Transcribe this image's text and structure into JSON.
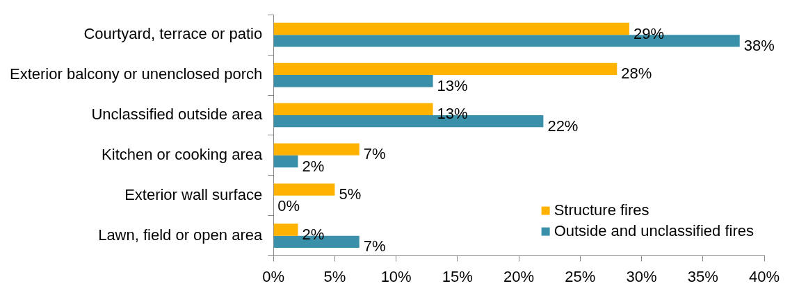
{
  "chart_data": {
    "type": "bar",
    "orientation": "horizontal",
    "categories": [
      "Courtyard, terrace or patio",
      "Exterior balcony or unenclosed porch",
      "Unclassified outside area",
      "Kitchen or cooking area",
      "Exterior wall surface",
      "Lawn, field or open area"
    ],
    "series": [
      {
        "name": "Structure fires",
        "color": "#ffb300",
        "values": [
          29,
          28,
          13,
          7,
          5,
          2
        ],
        "value_labels": [
          "29%",
          "28%",
          "13%",
          "7%",
          "5%",
          "2%"
        ]
      },
      {
        "name": "Outside and unclassified fires",
        "color": "#3a90a8",
        "values": [
          38,
          13,
          22,
          2,
          0,
          7
        ],
        "value_labels": [
          "38%",
          "13%",
          "22%",
          "2%",
          "0%",
          "7%"
        ]
      }
    ],
    "xlim": [
      0,
      40
    ],
    "xticks": [
      {
        "value": 0,
        "label": "0%"
      },
      {
        "value": 5,
        "label": "5%"
      },
      {
        "value": 10,
        "label": "10%"
      },
      {
        "value": 15,
        "label": "15%"
      },
      {
        "value": 20,
        "label": "20%"
      },
      {
        "value": 25,
        "label": "25%"
      },
      {
        "value": 30,
        "label": "30%"
      },
      {
        "value": 35,
        "label": "35%"
      },
      {
        "value": 40,
        "label": "40%"
      }
    ],
    "grid": false,
    "legend": "bottom right"
  }
}
